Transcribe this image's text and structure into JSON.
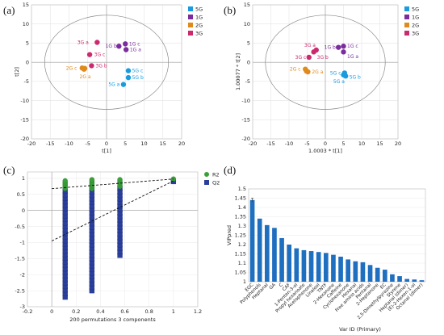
{
  "panels": {
    "a": "(a)",
    "b": "(b)",
    "c": "(c)",
    "d": "(d)"
  },
  "chart_data": [
    {
      "id": "a",
      "type": "scatter",
      "xlabel": "t[1]",
      "ylabel": "t[2]",
      "xlim": [
        -20,
        20
      ],
      "ylim": [
        -20,
        15
      ],
      "xticks": [
        -20,
        -15,
        -10,
        -5,
        0,
        5,
        10,
        15,
        20
      ],
      "yticks": [
        -20,
        -15,
        -10,
        -5,
        0,
        5,
        10,
        15
      ],
      "legend": [
        "5G",
        "1G",
        "2G",
        "3G"
      ],
      "legend_position": "top-right",
      "ellipse": {
        "cx": 0,
        "cy": 0,
        "rx": 16.5,
        "ry": 12.3
      },
      "colors": {
        "5G": "#1a9be0",
        "1G": "#7b2d9e",
        "2G": "#e08a1c",
        "3G": "#cc2a6e"
      },
      "points": [
        {
          "group": "3G",
          "label": "3G a",
          "x": -2.5,
          "y": 5.2
        },
        {
          "group": "3G",
          "label": "3G c",
          "x": -4.5,
          "y": 2.0
        },
        {
          "group": "3G",
          "label": "3G b",
          "x": -4.0,
          "y": -0.9
        },
        {
          "group": "1G",
          "label": "1G b",
          "x": 3.3,
          "y": 4.2
        },
        {
          "group": "1G",
          "label": "1G c",
          "x": 5.0,
          "y": 4.8
        },
        {
          "group": "1G",
          "label": "1G a",
          "x": 5.2,
          "y": 3.3
        },
        {
          "group": "2G",
          "label": "2G c",
          "x": -6.5,
          "y": -1.5
        },
        {
          "group": "2G",
          "label": "2G b",
          "x": -5.8,
          "y": -1.6
        },
        {
          "group": "2G",
          "label": "2G a",
          "x": -6.0,
          "y": -1.8
        },
        {
          "group": "5G",
          "label": "5G c",
          "x": 5.8,
          "y": -2.2
        },
        {
          "group": "5G",
          "label": "5G b",
          "x": 5.8,
          "y": -4.0
        },
        {
          "group": "5G",
          "label": "5G a",
          "x": 4.5,
          "y": -5.8
        }
      ],
      "label_text": [
        {
          "text": "3G a",
          "x": -7.8,
          "y": 5.2
        },
        {
          "text": "3G c",
          "x": -3.3,
          "y": 2.0
        },
        {
          "text": "3G b",
          "x": -2.9,
          "y": -0.9
        },
        {
          "text": "1G b",
          "x": -0.3,
          "y": 4.2
        },
        {
          "text": "1G c",
          "x": 6.0,
          "y": 4.8
        },
        {
          "text": "1G a",
          "x": 6.2,
          "y": 3.3
        },
        {
          "text": "2G c",
          "x": -10.8,
          "y": -1.5
        },
        {
          "text": "2G a",
          "x": -7.2,
          "y": -3.8
        },
        {
          "text": "5G c",
          "x": 6.8,
          "y": -2.2
        },
        {
          "text": "5G b",
          "x": 6.8,
          "y": -4.0
        },
        {
          "text": "5G a",
          "x": 0.5,
          "y": -5.8
        }
      ]
    },
    {
      "id": "b",
      "type": "scatter",
      "xlabel": "1.0003 * t[1]",
      "ylabel": "1.00077 * t[2]",
      "xlim": [
        -20,
        20
      ],
      "ylim": [
        -20,
        15
      ],
      "xticks": [
        -20,
        -15,
        -10,
        -5,
        0,
        5,
        10,
        15,
        20
      ],
      "yticks": [
        -20,
        -15,
        -10,
        -5,
        0,
        5,
        10,
        15
      ],
      "legend": [
        "5G",
        "1G",
        "2G",
        "3G"
      ],
      "legend_position": "top-right",
      "ellipse": {
        "cx": 0,
        "cy": 0,
        "rx": 16.5,
        "ry": 12.3
      },
      "colors": {
        "5G": "#1a9be0",
        "1G": "#7b2d9e",
        "2G": "#e08a1c",
        "3G": "#cc2a6e"
      },
      "points": [
        {
          "group": "3G",
          "label": "3G a",
          "x": -2.5,
          "y": 3.2
        },
        {
          "group": "3G",
          "label": "3G c",
          "x": -3.2,
          "y": 2.7
        },
        {
          "group": "3G",
          "label": "3G b",
          "x": -4.5,
          "y": 1.3
        },
        {
          "group": "1G",
          "label": "1G b",
          "x": 3.6,
          "y": 3.9
        },
        {
          "group": "1G",
          "label": "1G c",
          "x": 5.0,
          "y": 4.2
        },
        {
          "group": "1G",
          "label": "1G a",
          "x": 5.0,
          "y": 2.7
        },
        {
          "group": "2G",
          "label": "2G c",
          "x": -5.5,
          "y": -1.8
        },
        {
          "group": "2G",
          "label": "2G b",
          "x": -5.2,
          "y": -2.3
        },
        {
          "group": "2G",
          "label": "2G a",
          "x": -4.8,
          "y": -2.5
        },
        {
          "group": "5G",
          "label": "5G c",
          "x": 5.3,
          "y": -2.8
        },
        {
          "group": "5G",
          "label": "5G b",
          "x": 5.6,
          "y": -3.6
        },
        {
          "group": "5G",
          "label": "5G a",
          "x": 5.0,
          "y": -3.3
        }
      ],
      "label_text": [
        {
          "text": "3G a",
          "x": -5.8,
          "y": 4.5
        },
        {
          "text": "3G c",
          "x": -8.3,
          "y": 1.3
        },
        {
          "text": "3G b",
          "x": -2.3,
          "y": 1.3
        },
        {
          "text": "1G b",
          "x": -0.3,
          "y": 3.9
        },
        {
          "text": "1G c",
          "x": 6.0,
          "y": 4.2
        },
        {
          "text": "1G a",
          "x": 6.0,
          "y": 1.5
        },
        {
          "text": "2G c",
          "x": -9.8,
          "y": -1.8
        },
        {
          "text": "2G a",
          "x": -3.7,
          "y": -2.5
        },
        {
          "text": "5G c",
          "x": 1.3,
          "y": -2.8
        },
        {
          "text": "5G b",
          "x": 6.6,
          "y": -3.9
        },
        {
          "text": "5G a",
          "x": 2.2,
          "y": -5.0
        }
      ]
    },
    {
      "id": "c",
      "type": "scatter",
      "title": "",
      "xlabel": "200 permutations 3 components",
      "ylabel": "",
      "xlim": [
        -0.2,
        1.2
      ],
      "ylim": [
        -3,
        1.2
      ],
      "xticks": [
        -0.2,
        0,
        0.2,
        0.4,
        0.6,
        0.8,
        1,
        1.2
      ],
      "yticks": [
        -3,
        -2.5,
        -2,
        -1.5,
        -1,
        -0.5,
        0,
        0.5,
        1
      ],
      "legend": [
        "R2",
        "Q2"
      ],
      "legend_position": "top-right",
      "colors": {
        "R2": "#3aa03a",
        "Q2": "#2a3e9c"
      },
      "r2_columns": [
        {
          "x": 0.11,
          "ymin": 0.68,
          "ymax": 0.95
        },
        {
          "x": 0.33,
          "ymin": 0.68,
          "ymax": 0.98
        },
        {
          "x": 0.56,
          "ymin": 0.75,
          "ymax": 0.98
        },
        {
          "x": 1.0,
          "ymin": 0.98,
          "ymax": 0.98
        }
      ],
      "q2_columns": [
        {
          "x": 0.11,
          "ymin": -2.7,
          "ymax": 0.7
        },
        {
          "x": 0.33,
          "ymin": -2.5,
          "ymax": 0.75
        },
        {
          "x": 0.56,
          "ymin": -1.4,
          "ymax": 0.75
        },
        {
          "x": 1.0,
          "ymin": 0.9,
          "ymax": 0.9
        }
      ],
      "r2_line": [
        [
          0,
          0.68
        ],
        [
          1,
          0.98
        ]
      ],
      "q2_line": [
        [
          0,
          -0.95
        ],
        [
          1,
          0.92
        ]
      ]
    },
    {
      "id": "d",
      "type": "bar",
      "xlabel": "Var ID (Primary)",
      "ylabel": "VIPpred",
      "ylim": [
        1.0,
        1.5
      ],
      "yticks": [
        1,
        1.05,
        1.1,
        1.15,
        1.2,
        1.25,
        1.3,
        1.35,
        1.4,
        1.45,
        1.5
      ],
      "color": "#1e6fc0",
      "categories": [
        "EGC",
        "Polyphenols",
        "Heptanal",
        "GA",
        "C",
        "CAF",
        "1-Penten-3-ol",
        "Propyl hexanoate",
        "Acetophenone",
        "Linalool",
        "TNTF",
        "2-Hexanone",
        "Caffeine",
        "Cyclohexanone",
        "Hexanal",
        "Free amino acids",
        "Pentanal",
        "2-Heptanone",
        "EC",
        "2,5-Dimethylpyrazine",
        "Styrene",
        "Heptanal (dimer)",
        "(E)-2-Hexen-1-ol",
        "Octanal (dimer)"
      ],
      "values": [
        1.44,
        1.34,
        1.305,
        1.29,
        1.235,
        1.2,
        1.18,
        1.17,
        1.165,
        1.16,
        1.155,
        1.145,
        1.135,
        1.12,
        1.11,
        1.105,
        1.09,
        1.075,
        1.065,
        1.04,
        1.03,
        1.015,
        1.012,
        1.008
      ],
      "errors": [
        0.01,
        0.0,
        0.0,
        0.0,
        0.0,
        0.0,
        0.0,
        0.0,
        0.0,
        0.0,
        0.0,
        0.0,
        0.0,
        0.0,
        0.0,
        0.0,
        0.0,
        0.0,
        0.0,
        0.0,
        0.0,
        0.0,
        0.0,
        0.0
      ]
    }
  ]
}
